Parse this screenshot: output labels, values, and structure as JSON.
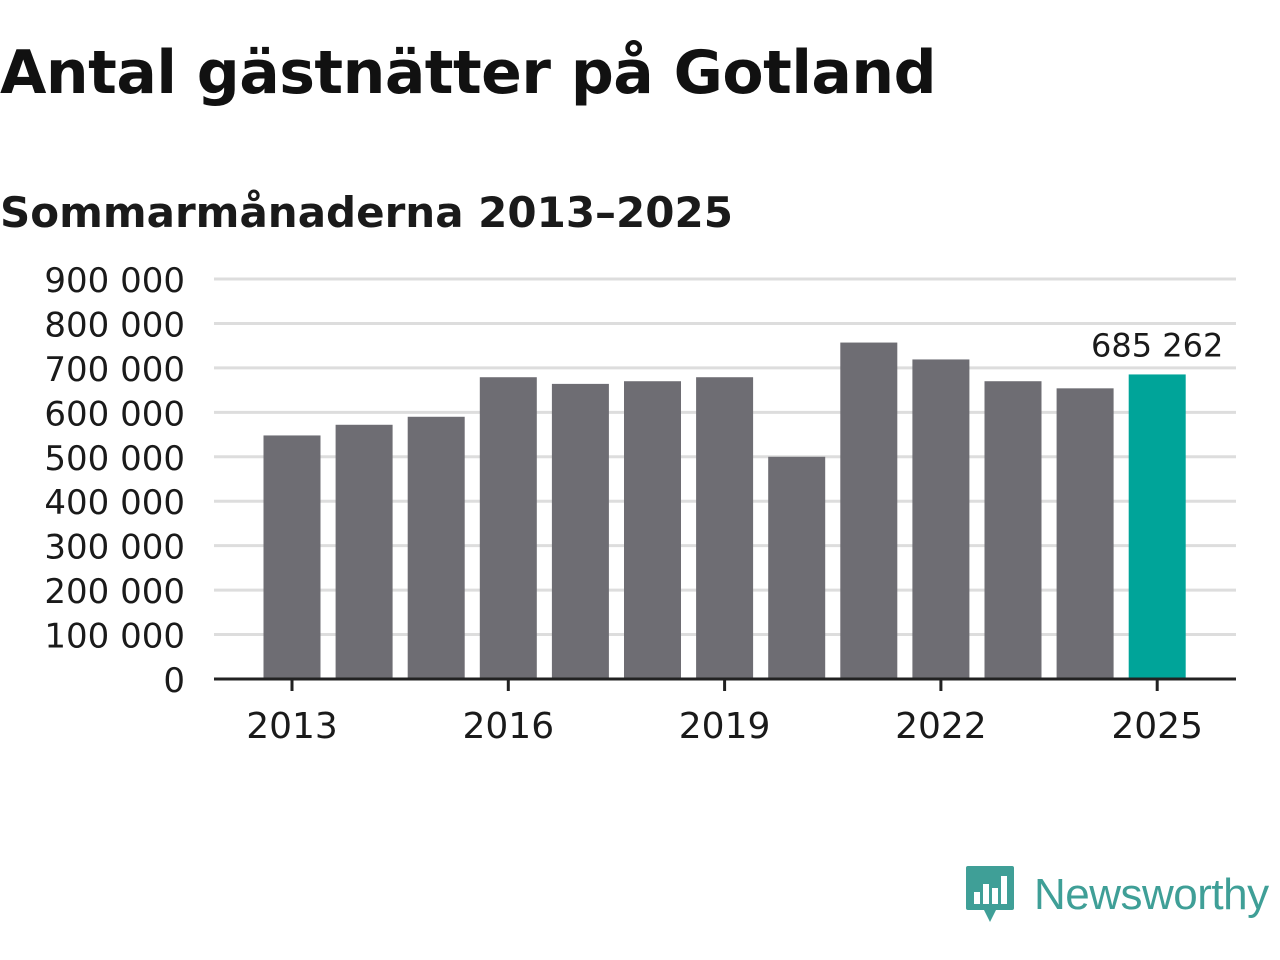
{
  "title": "Antal gästnätter på Gotland",
  "subtitle": "Sommarmånaderna 2013–2025",
  "brand": {
    "name": "Newsworthy",
    "icon": "newsworthy-logo-icon",
    "color": "#3f9f97"
  },
  "colors": {
    "bar": "#6e6d73",
    "highlight": "#00a499",
    "grid": "#dddddd",
    "axis": "#222222",
    "text": "#1a1a1a"
  },
  "chart_data": {
    "type": "bar",
    "title": "Antal gästnätter på Gotland",
    "subtitle": "Sommarmånaderna 2013–2025",
    "xlabel": "",
    "ylabel": "",
    "categories": [
      "2013",
      "2014",
      "2015",
      "2016",
      "2017",
      "2018",
      "2019",
      "2020",
      "2021",
      "2022",
      "2023",
      "2024",
      "2025"
    ],
    "values": [
      548000,
      572000,
      590000,
      679000,
      664000,
      670000,
      679000,
      500000,
      757000,
      719000,
      670000,
      654000,
      685262
    ],
    "ylim": [
      0,
      900000
    ],
    "yticks": [
      0,
      100000,
      200000,
      300000,
      400000,
      500000,
      600000,
      700000,
      800000,
      900000
    ],
    "ytick_labels": [
      "0",
      "100 000",
      "200 000",
      "300 000",
      "400 000",
      "500 000",
      "600 000",
      "700 000",
      "800 000",
      "900 000"
    ],
    "xtick_labels": [
      "2013",
      "2016",
      "2019",
      "2022",
      "2025"
    ],
    "highlight_index": 12,
    "annotation": {
      "index": 12,
      "text": "685 262"
    },
    "grid": true,
    "legend": "none"
  }
}
